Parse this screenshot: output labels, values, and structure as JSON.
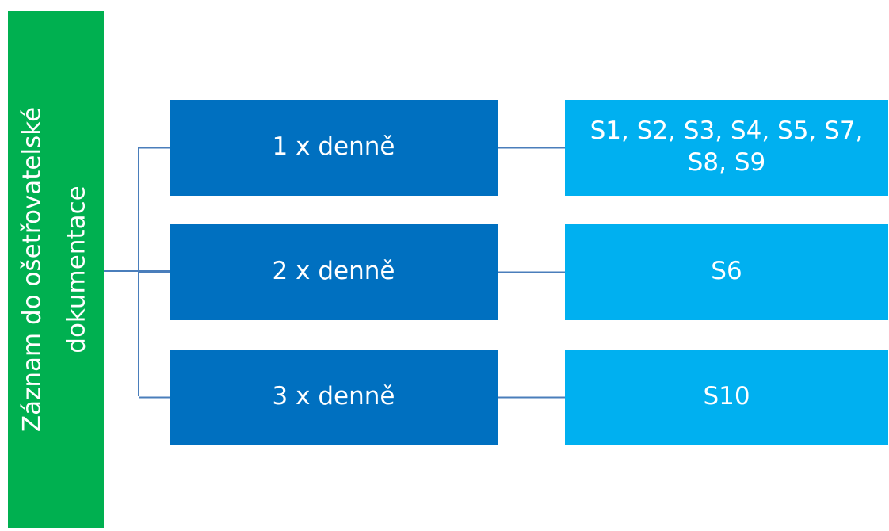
{
  "root": {
    "label": [
      "Záznam do ošetřovatelské",
      "dokumentace"
    ]
  },
  "nodes": [
    {
      "label": "1 x denně",
      "items": [
        "S1, S2, S3, S4, S5, S7,",
        "S8, S9"
      ]
    },
    {
      "label": "2 x denně",
      "items": [
        "S6"
      ]
    },
    {
      "label": "3 x denně",
      "items": [
        "S10"
      ]
    }
  ]
}
